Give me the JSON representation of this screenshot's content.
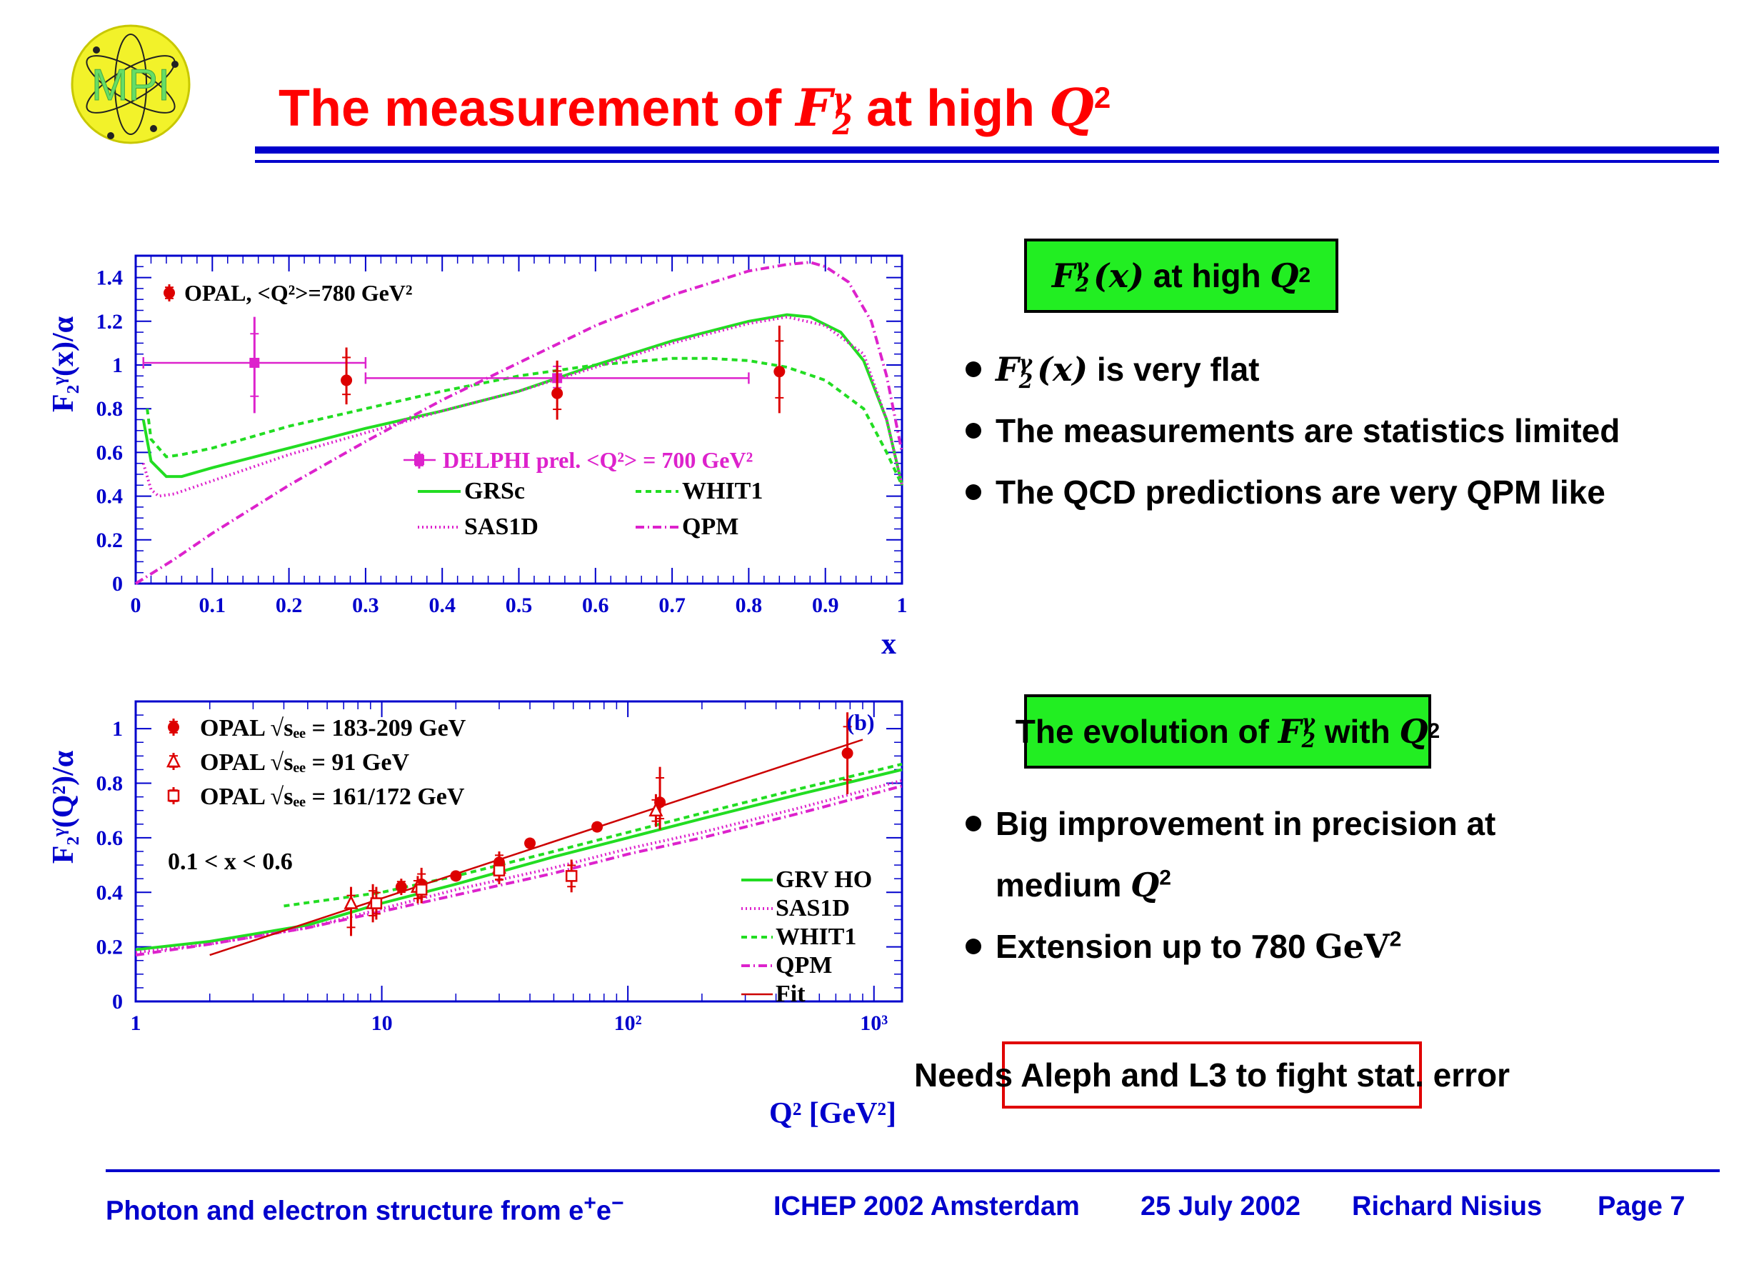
{
  "slide": {
    "title_a": "The measurement of ",
    "title_F": "F",
    "title_sub": "2",
    "title_sup": "γ",
    "title_b": " at high ",
    "title_Q": "Q",
    "title_Qsup": "2",
    "box1": {
      "F": "F",
      "sub": "2",
      "sup": "γ",
      "arg": "(x)",
      "mid": " at high ",
      "Q": "Q",
      "Qsup": "2"
    },
    "bullets1": {
      "b1_F": "F",
      "b1_sub": "2",
      "b1_sup": "γ",
      "b1_arg": "(x)",
      "b1_rest": " is very flat",
      "b2": "The measurements are statistics limited",
      "b3": "The QCD predictions are very QPM like"
    },
    "box2": {
      "pre": "The evolution of ",
      "F": "F",
      "sub": "2",
      "sup": "γ",
      "mid": " with ",
      "Q": "Q",
      "Qsup": "2"
    },
    "bullets2": {
      "b1": "Big improvement in precision at",
      "b1_cont": "medium ",
      "b1_Q": "Q",
      "b1_Qsup": "2",
      "b2": "Extension up to 780 ",
      "b2_unit": "GeV",
      "b2_sup": "2"
    },
    "note": "Needs Aleph and L3 to fight stat. error",
    "logo_text": "MPI",
    "footer": {
      "left": "Photon and electron structure from e",
      "left_plus": "+",
      "left_e": "e",
      "left_minus": "−",
      "conf": "ICHEP 2002 Amsterdam",
      "date": "25 July 2002",
      "author": "Richard Nisius",
      "page": "Page 7"
    },
    "colors": {
      "title": "#ff0000",
      "accent": "#0000cc",
      "box_green": "#22ee22",
      "note_border": "#e00000"
    }
  },
  "chart_data": [
    {
      "type": "line",
      "panel": "a",
      "xlabel": "x",
      "ylabel": "F₂ᵞ(x)/α",
      "xlim": [
        0,
        1
      ],
      "ylim": [
        0,
        1.5
      ],
      "xticks": [
        "0",
        "0.1",
        "0.2",
        "0.3",
        "0.4",
        "0.5",
        "0.6",
        "0.7",
        "0.8",
        "0.9",
        "1"
      ],
      "yticks": [
        "0",
        "0.2",
        "0.4",
        "0.6",
        "0.8",
        "1",
        "1.2",
        "1.4"
      ],
      "legend_opal": "OPAL, <Q²>=780 GeV²",
      "legend_delphi": "DELPHI prel. <Q²> = 700 GeV²",
      "opal": [
        {
          "x": 0.275,
          "y": 0.93,
          "lo": 0.82,
          "hi": 1.08
        },
        {
          "x": 0.55,
          "y": 0.87,
          "lo": 0.75,
          "hi": 1.02
        },
        {
          "x": 0.84,
          "y": 0.97,
          "lo": 0.78,
          "hi": 1.18
        }
      ],
      "delphi": [
        {
          "x": 0.155,
          "y": 1.01,
          "xlo": 0.01,
          "xhi": 0.3,
          "lo": 0.78,
          "hi": 1.22
        },
        {
          "x": 0.55,
          "y": 0.94,
          "xlo": 0.3,
          "xhi": 0.8,
          "lo": 0.87,
          "hi": 1.02
        }
      ],
      "series": [
        {
          "name": "GRSc",
          "color": "#22dd22",
          "dash": "solid",
          "x": [
            0.01,
            0.02,
            0.04,
            0.06,
            0.1,
            0.2,
            0.3,
            0.4,
            0.5,
            0.55,
            0.6,
            0.7,
            0.8,
            0.85,
            0.88,
            0.92,
            0.95,
            0.98,
            1.0
          ],
          "y": [
            0.75,
            0.56,
            0.49,
            0.49,
            0.53,
            0.62,
            0.71,
            0.79,
            0.88,
            0.94,
            1.0,
            1.11,
            1.2,
            1.23,
            1.22,
            1.15,
            1.02,
            0.75,
            0.45
          ]
        },
        {
          "name": "WHIT1",
          "color": "#22dd22",
          "dash": "8,6",
          "x": [
            0.015,
            0.02,
            0.04,
            0.06,
            0.1,
            0.2,
            0.3,
            0.4,
            0.5,
            0.6,
            0.7,
            0.75,
            0.8,
            0.85,
            0.9,
            0.95,
            0.98,
            1.0
          ],
          "y": [
            0.8,
            0.66,
            0.58,
            0.59,
            0.62,
            0.72,
            0.8,
            0.88,
            0.95,
            1.0,
            1.03,
            1.03,
            1.02,
            0.99,
            0.93,
            0.8,
            0.6,
            0.45
          ]
        },
        {
          "name": "SAS1D",
          "color": "#dd22cc",
          "dash": "2,4",
          "x": [
            0.01,
            0.02,
            0.03,
            0.05,
            0.1,
            0.2,
            0.3,
            0.4,
            0.5,
            0.6,
            0.7,
            0.8,
            0.85,
            0.9,
            0.95,
            0.98,
            1.0
          ],
          "y": [
            0.55,
            0.43,
            0.4,
            0.41,
            0.47,
            0.59,
            0.69,
            0.79,
            0.88,
            0.99,
            1.1,
            1.19,
            1.22,
            1.18,
            1.05,
            0.75,
            0.45
          ]
        },
        {
          "name": "QPM",
          "color": "#dd22cc",
          "dash": "12,5,2,5",
          "x": [
            0.0,
            0.05,
            0.1,
            0.2,
            0.3,
            0.4,
            0.5,
            0.6,
            0.7,
            0.8,
            0.85,
            0.88,
            0.9,
            0.93,
            0.96,
            0.98,
            1.0
          ],
          "y": [
            0.0,
            0.11,
            0.23,
            0.45,
            0.65,
            0.84,
            1.01,
            1.18,
            1.32,
            1.43,
            1.46,
            1.47,
            1.45,
            1.38,
            1.2,
            0.95,
            0.6
          ]
        }
      ]
    },
    {
      "type": "line",
      "panel": "b",
      "tag": "(b)",
      "xlabel": "Q² [GeV²]",
      "ylabel": "F₂ᵞ(Q²)/α",
      "xscale": "log",
      "xlim": [
        1,
        1300
      ],
      "ylim": [
        0,
        1.1
      ],
      "xticks": [
        "1",
        "10",
        "10²",
        "10³"
      ],
      "yticks": [
        "0",
        "0.2",
        "0.4",
        "0.6",
        "0.8",
        "1"
      ],
      "cut": "0.1 < x < 0.6",
      "legend_183": "OPAL √sₑₑ = 183-209 GeV",
      "legend_91": "OPAL √sₑₑ = 91 GeV",
      "legend_161": "OPAL √sₑₑ = 161/172 GeV",
      "opal_183": [
        {
          "x": 12,
          "y": 0.42,
          "lo": 0.39,
          "hi": 0.45
        },
        {
          "x": 14.5,
          "y": 0.43,
          "lo": 0.36,
          "hi": 0.49
        },
        {
          "x": 20,
          "y": 0.46,
          "lo": 0.44,
          "hi": 0.48
        },
        {
          "x": 30,
          "y": 0.51,
          "lo": 0.47,
          "hi": 0.55
        },
        {
          "x": 40,
          "y": 0.58,
          "lo": 0.56,
          "hi": 0.6
        },
        {
          "x": 75,
          "y": 0.64,
          "lo": 0.62,
          "hi": 0.66
        },
        {
          "x": 135,
          "y": 0.73,
          "lo": 0.63,
          "hi": 0.86
        },
        {
          "x": 780,
          "y": 0.91,
          "lo": 0.76,
          "hi": 1.06
        }
      ],
      "opal_91": [
        {
          "x": 7.5,
          "y": 0.36,
          "lo": 0.24,
          "hi": 0.42
        },
        {
          "x": 9.2,
          "y": 0.36,
          "lo": 0.29,
          "hi": 0.43
        },
        {
          "x": 14,
          "y": 0.42,
          "lo": 0.36,
          "hi": 0.46
        },
        {
          "x": 30,
          "y": 0.49,
          "lo": 0.43,
          "hi": 0.53
        },
        {
          "x": 130,
          "y": 0.7,
          "lo": 0.64,
          "hi": 0.76
        }
      ],
      "opal_161": [
        {
          "x": 9.5,
          "y": 0.36,
          "lo": 0.3,
          "hi": 0.42
        },
        {
          "x": 14.5,
          "y": 0.41,
          "lo": 0.37,
          "hi": 0.45
        },
        {
          "x": 30,
          "y": 0.48,
          "lo": 0.43,
          "hi": 0.52
        },
        {
          "x": 59,
          "y": 0.46,
          "lo": 0.4,
          "hi": 0.52
        }
      ],
      "series": [
        {
          "name": "GRV HO",
          "color": "#22dd22",
          "dash": "solid",
          "x": [
            1,
            2,
            5,
            10,
            20,
            50,
            100,
            200,
            500,
            1300
          ],
          "y": [
            0.19,
            0.22,
            0.28,
            0.36,
            0.43,
            0.53,
            0.6,
            0.67,
            0.76,
            0.85
          ]
        },
        {
          "name": "SAS1D",
          "color": "#dd22cc",
          "dash": "2,4",
          "x": [
            1,
            2,
            5,
            10,
            20,
            50,
            100,
            200,
            500,
            1300
          ],
          "y": [
            0.18,
            0.21,
            0.27,
            0.34,
            0.41,
            0.49,
            0.56,
            0.62,
            0.71,
            0.81
          ]
        },
        {
          "name": "WHIT1",
          "color": "#22dd22",
          "dash": "8,6",
          "x": [
            4,
            10,
            20,
            50,
            100,
            200,
            500,
            1300
          ],
          "y": [
            0.35,
            0.4,
            0.46,
            0.55,
            0.62,
            0.69,
            0.78,
            0.87
          ]
        },
        {
          "name": "QPM",
          "color": "#dd22cc",
          "dash": "12,5,2,5",
          "x": [
            1,
            2,
            5,
            10,
            20,
            50,
            100,
            200,
            500,
            1300
          ],
          "y": [
            0.17,
            0.21,
            0.27,
            0.33,
            0.39,
            0.47,
            0.54,
            0.6,
            0.69,
            0.79
          ]
        },
        {
          "name": "Fit",
          "color": "#cc0000",
          "dash": "solid",
          "x": [
            2,
            900
          ],
          "y": [
            0.17,
            0.96
          ]
        }
      ]
    }
  ]
}
